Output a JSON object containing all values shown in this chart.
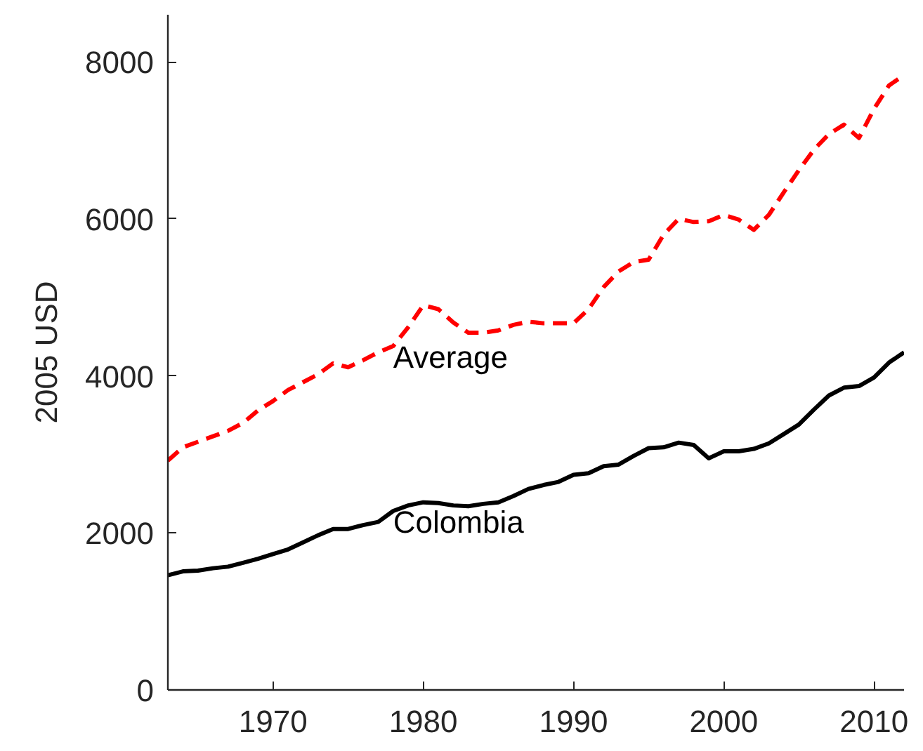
{
  "chart_data": {
    "type": "line",
    "ylabel": "2005 USD",
    "x": [
      1963,
      1964,
      1965,
      1966,
      1967,
      1968,
      1969,
      1970,
      1971,
      1972,
      1973,
      1974,
      1975,
      1976,
      1977,
      1978,
      1979,
      1980,
      1981,
      1982,
      1983,
      1984,
      1985,
      1986,
      1987,
      1988,
      1989,
      1990,
      1991,
      1992,
      1993,
      1994,
      1995,
      1996,
      1997,
      1998,
      1999,
      2000,
      2001,
      2002,
      2003,
      2004,
      2005,
      2006,
      2007,
      2008,
      2009,
      2010,
      2011,
      2012
    ],
    "series": [
      {
        "name": "Average",
        "color": "#ff0000",
        "line_style": "dashed",
        "values": [
          2920,
          3090,
          3160,
          3230,
          3300,
          3400,
          3560,
          3680,
          3820,
          3920,
          4020,
          4160,
          4110,
          4200,
          4300,
          4380,
          4620,
          4900,
          4850,
          4680,
          4550,
          4550,
          4580,
          4650,
          4690,
          4670,
          4670,
          4670,
          4850,
          5130,
          5330,
          5450,
          5480,
          5800,
          6000,
          5960,
          5970,
          6050,
          5990,
          5860,
          6050,
          6340,
          6620,
          6880,
          7080,
          7200,
          7030,
          7400,
          7700,
          7830
        ]
      },
      {
        "name": "Colombia",
        "color": "#000000",
        "line_style": "solid",
        "values": [
          1460,
          1510,
          1520,
          1550,
          1570,
          1620,
          1670,
          1730,
          1790,
          1880,
          1970,
          2050,
          2050,
          2100,
          2140,
          2280,
          2350,
          2390,
          2380,
          2350,
          2340,
          2370,
          2390,
          2470,
          2560,
          2610,
          2650,
          2740,
          2760,
          2850,
          2870,
          2980,
          3080,
          3090,
          3150,
          3120,
          2950,
          3040,
          3040,
          3070,
          3140,
          3260,
          3380,
          3570,
          3750,
          3850,
          3870,
          3980,
          4170,
          4300
        ]
      }
    ],
    "xlim": [
      1963,
      2012
    ],
    "ylim": [
      0,
      8600
    ],
    "xticks": [
      1970,
      1980,
      1990,
      2000,
      2010
    ],
    "yticks": [
      0,
      2000,
      4000,
      6000,
      8000
    ]
  }
}
